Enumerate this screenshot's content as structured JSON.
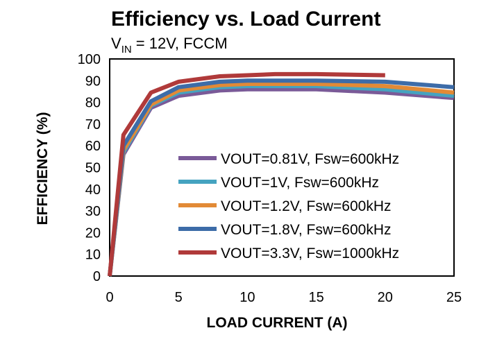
{
  "chart_data": {
    "type": "line",
    "title": "Efficiency vs. Load Current",
    "subtitle": {
      "prefix": "V",
      "subscript": "IN",
      "suffix": " = 12V, FCCM"
    },
    "xlabel": "LOAD CURRENT (A)",
    "ylabel": "EFFICIENCY (%)",
    "xlim": [
      0,
      25
    ],
    "ylim": [
      0,
      100
    ],
    "xticks": [
      0,
      5,
      10,
      15,
      20,
      25
    ],
    "yticks": [
      0,
      10,
      20,
      30,
      40,
      50,
      60,
      70,
      80,
      90,
      100
    ],
    "grid": false,
    "legend_position": "bottom-right",
    "series": [
      {
        "name": "VOUT=0.81V, Fsw=600kHz",
        "color": "#7a5a98",
        "x": [
          0,
          1,
          3,
          5,
          8,
          10,
          12,
          15,
          20,
          25
        ],
        "y": [
          0,
          56,
          77.5,
          83,
          85.5,
          86,
          86,
          86,
          84.5,
          82
        ]
      },
      {
        "name": "VOUT=1V, Fsw=600kHz",
        "color": "#45a3c0",
        "x": [
          0,
          1,
          3,
          5,
          8,
          10,
          12,
          15,
          20,
          25
        ],
        "y": [
          0,
          57,
          78.5,
          84.5,
          87,
          87.5,
          87.5,
          87.5,
          86,
          83
        ]
      },
      {
        "name": "VOUT=1.2V, Fsw=600kHz",
        "color": "#e28a36",
        "x": [
          0,
          1,
          3,
          5,
          8,
          10,
          12,
          15,
          20,
          25
        ],
        "y": [
          0,
          58,
          79,
          85.5,
          88,
          88.5,
          88.5,
          88.5,
          87.5,
          84.5
        ]
      },
      {
        "name": "VOUT=1.8V, Fsw=600kHz",
        "color": "#3d6ca8",
        "x": [
          0,
          1,
          3,
          5,
          8,
          10,
          12,
          15,
          20,
          25
        ],
        "y": [
          0,
          60,
          80.5,
          87,
          89.5,
          90,
          90,
          90,
          89.5,
          87
        ]
      },
      {
        "name": "VOUT=3.3V, Fsw=1000kHz",
        "color": "#b03a3a",
        "x": [
          0,
          1,
          3,
          5,
          8,
          10,
          12,
          15,
          20
        ],
        "y": [
          0,
          65,
          84.5,
          89.5,
          92,
          92.5,
          93,
          93,
          92.5
        ]
      }
    ]
  }
}
